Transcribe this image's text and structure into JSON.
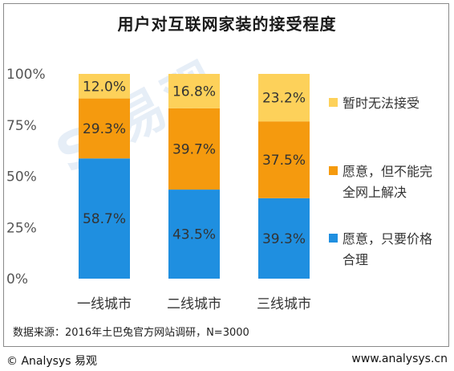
{
  "title": "用户对互联网家装的接受程度",
  "source": "数据来源：2016年土巴兔官方网站调研，N=3000",
  "footer": {
    "copyright": "© Analysys 易观",
    "url": "www.analysys.cn"
  },
  "watermark": "S 易观",
  "colors": {
    "series_1": "#1f8fe0",
    "series_2": "#f59a0e",
    "series_3": "#fdd15a"
  },
  "chart_data": {
    "type": "bar",
    "stacked": true,
    "percent": true,
    "categories": [
      "一线城市",
      "二线城市",
      "三线城市"
    ],
    "y_ticks": [
      "0%",
      "25%",
      "50%",
      "75%",
      "100%"
    ],
    "ylim": [
      0,
      100
    ],
    "grid": false,
    "legend_position": "right",
    "series": [
      {
        "name": "愿意，只要价格合理",
        "values": [
          58.7,
          43.5,
          39.3
        ],
        "labels": [
          "58.7%",
          "43.5%",
          "39.3%"
        ]
      },
      {
        "name": "愿意，但不能完全网上解决",
        "values": [
          29.3,
          39.7,
          37.5
        ],
        "labels": [
          "29.3%",
          "39.7%",
          "37.5%"
        ]
      },
      {
        "name": "暂时无法接受",
        "values": [
          12.0,
          16.8,
          23.2
        ],
        "labels": [
          "12.0%",
          "16.8%",
          "23.2%"
        ]
      }
    ]
  }
}
